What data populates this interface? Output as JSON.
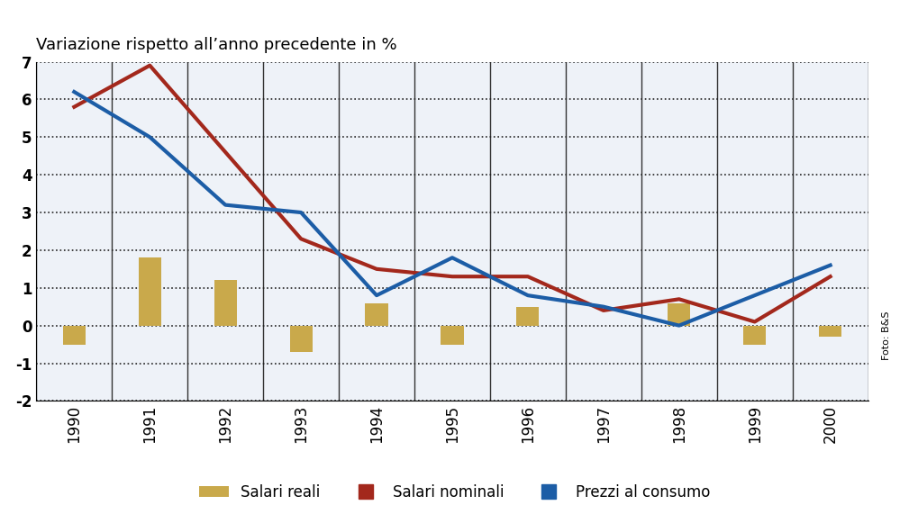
{
  "chart_data": {
    "type": "combo",
    "title": "Variazione rispetto all’anno precedente in %",
    "annotations": [
      "Foto: B&S"
    ],
    "categories": [
      "1990",
      "1991",
      "1992",
      "1993",
      "1994",
      "1995",
      "1996",
      "1997",
      "1998",
      "1999",
      "2000"
    ],
    "series": [
      {
        "name": "Salari reali",
        "type": "bar",
        "color": "#c9a94b",
        "values": [
          -0.5,
          1.8,
          1.2,
          -0.7,
          0.6,
          -0.5,
          0.5,
          0.0,
          0.6,
          -0.5,
          -0.3
        ]
      },
      {
        "name": "Salari nominali",
        "type": "line",
        "color": "#a3281c",
        "values": [
          5.8,
          6.9,
          4.6,
          2.3,
          1.5,
          1.3,
          1.3,
          0.4,
          0.7,
          0.1,
          1.3
        ]
      },
      {
        "name": "Prezzi al consumo",
        "type": "line",
        "color": "#1c5da6",
        "values": [
          6.2,
          5.0,
          3.2,
          3.0,
          0.8,
          1.8,
          0.8,
          0.5,
          0.0,
          0.8,
          1.6
        ]
      }
    ],
    "ylim": [
      -2,
      7
    ],
    "yticks": [
      -2,
      -1,
      0,
      1,
      2,
      3,
      4,
      5,
      6,
      7
    ],
    "grid": true,
    "legend": "lower center"
  }
}
